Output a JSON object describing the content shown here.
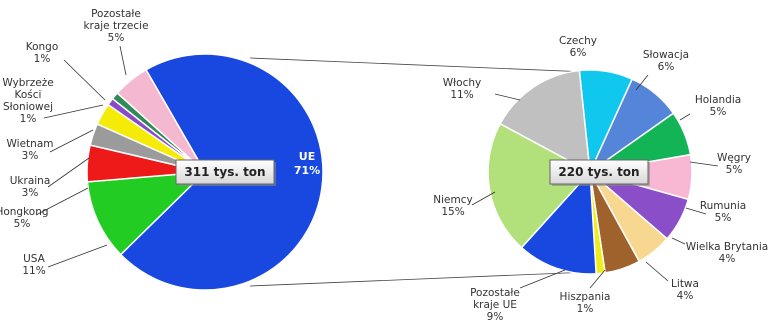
{
  "chart_data": [
    {
      "type": "pie",
      "center_label": "311 tys. ton",
      "slices": [
        {
          "label": "UE",
          "value": 71,
          "pct": "71%",
          "color": "#1848e0",
          "inside": true
        },
        {
          "label": "USA",
          "value": 11,
          "pct": "11%",
          "color": "#22cc22"
        },
        {
          "label": "Hongkong",
          "value": 5,
          "pct": "5%",
          "color": "#ee1a1a"
        },
        {
          "label": "Ukraina",
          "value": 3,
          "pct": "3%",
          "color": "#9b9b9b"
        },
        {
          "label": "Wietnam",
          "value": 3,
          "pct": "3%",
          "color": "#f4ec08"
        },
        {
          "label": "Wybrzeże Kości Słoniowej",
          "value": 1,
          "pct": "1%",
          "color": "#8a4ac8"
        },
        {
          "label": "Kongo",
          "value": 1,
          "pct": "1%",
          "color": "#2e8b57"
        },
        {
          "label": "Pozostałe kraje trzecie",
          "value": 5,
          "pct": "5%",
          "color": "#f4b8d0"
        }
      ]
    },
    {
      "type": "pie",
      "center_label": "220 tys. ton",
      "slices": [
        {
          "label": "Czechy",
          "value": 6,
          "pct": "6%",
          "color": "#10c8ee"
        },
        {
          "label": "Słowacja",
          "value": 6,
          "pct": "6%",
          "color": "#5585d8"
        },
        {
          "label": "Holandia",
          "value": 5,
          "pct": "5%",
          "color": "#12b455"
        },
        {
          "label": "Węgry",
          "value": 5,
          "pct": "5%",
          "color": "#f8b8d4"
        },
        {
          "label": "Rumunia",
          "value": 5,
          "pct": "5%",
          "color": "#8a4ec8"
        },
        {
          "label": "Wielka Brytania",
          "value": 4,
          "pct": "4%",
          "color": "#f8d890"
        },
        {
          "label": "Litwa",
          "value": 4,
          "pct": "4%",
          "color": "#a0622d"
        },
        {
          "label": "Hiszpania",
          "value": 1,
          "pct": "1%",
          "color": "#f0ec18"
        },
        {
          "label": "Pozostałe kraje UE",
          "value": 9,
          "pct": "9%",
          "color": "#1848e0"
        },
        {
          "label": "Niemcy",
          "value": 15,
          "pct": "15%",
          "color": "#b2e07a"
        },
        {
          "label": "Włochy",
          "value": 11,
          "pct": "11%",
          "color": "#c0c0c0"
        }
      ]
    }
  ]
}
